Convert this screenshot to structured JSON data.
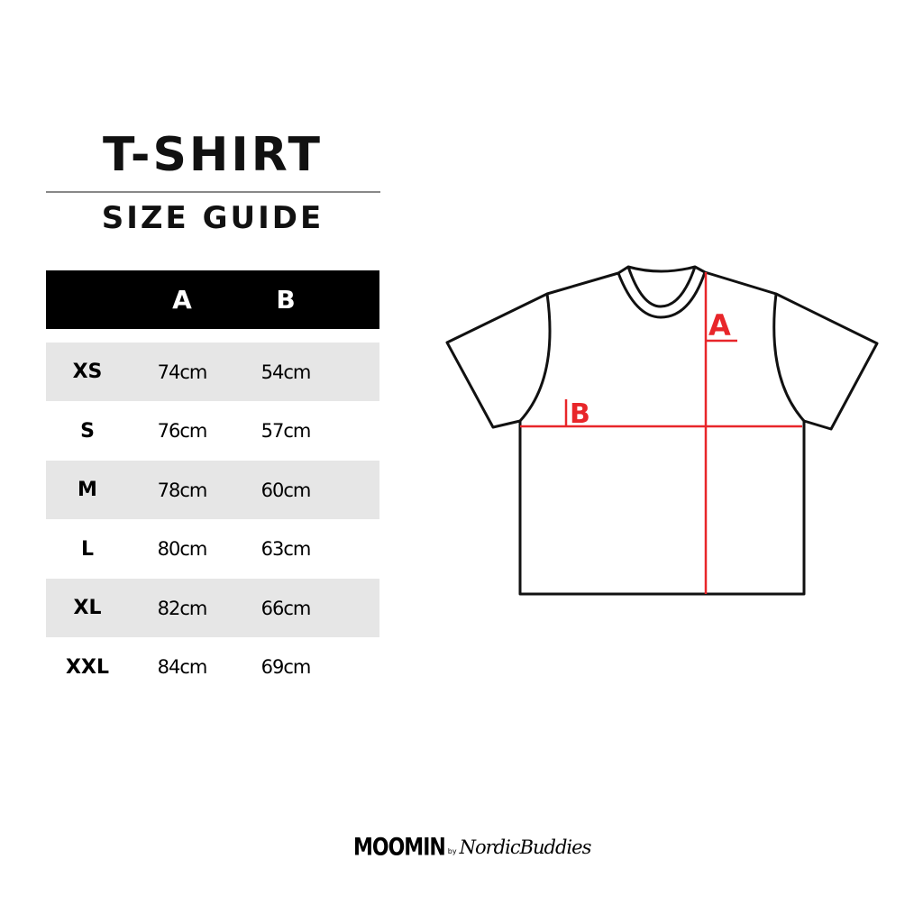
{
  "title": "T-SHIRT",
  "subtitle": "SIZE GUIDE",
  "table": {
    "headers": [
      "",
      "A",
      "B"
    ],
    "rows": [
      {
        "size": "XS",
        "a": "74cm",
        "b": "54cm"
      },
      {
        "size": "S",
        "a": "76cm",
        "b": "57cm"
      },
      {
        "size": "M",
        "a": "78cm",
        "b": "60cm"
      },
      {
        "size": "L",
        "a": "80cm",
        "b": "63cm"
      },
      {
        "size": "XL",
        "a": "82cm",
        "b": "66cm"
      },
      {
        "size": "XXL",
        "a": "84cm",
        "b": "69cm"
      }
    ]
  },
  "diagram": {
    "label_a": "A",
    "label_b": "B",
    "measure_color": "#e8262a"
  },
  "logo": {
    "brand": "MOOMIN",
    "by": "by",
    "partner": "NordicBuddies"
  },
  "colors": {
    "header_bg": "#000000",
    "stripe": "#e6e6e6"
  }
}
